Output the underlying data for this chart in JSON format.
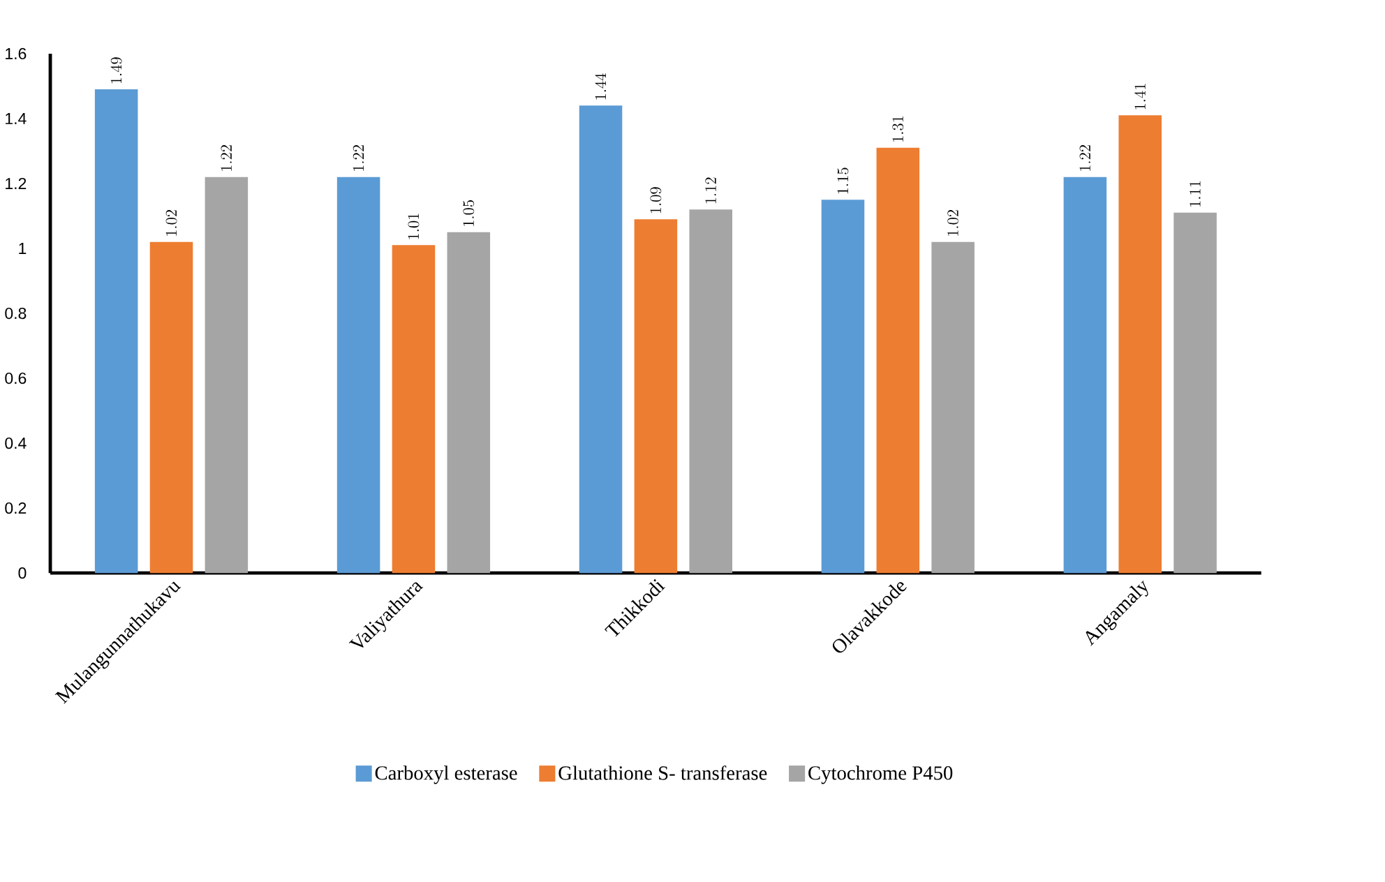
{
  "chart_data": {
    "type": "bar",
    "categories": [
      "Mulangunnathukavu",
      "Valiyathura",
      "Thikkodi",
      "Olavakkode",
      "Angamaly"
    ],
    "series": [
      {
        "name": "Carboxyl esterase",
        "color": "#5b9bd5",
        "values": [
          1.49,
          1.22,
          1.44,
          1.15,
          1.22
        ]
      },
      {
        "name": "Glutathione S- transferase",
        "color": "#ed7d31",
        "values": [
          1.02,
          1.01,
          1.09,
          1.31,
          1.41
        ]
      },
      {
        "name": "Cytochrome P450",
        "color": "#a5a5a5",
        "values": [
          1.22,
          1.05,
          1.12,
          1.02,
          1.11
        ]
      }
    ],
    "ylim": [
      0,
      1.6
    ],
    "yticks": [
      0,
      0.2,
      0.4,
      0.6,
      0.8,
      1,
      1.2,
      1.4,
      1.6
    ],
    "data_labels": true,
    "legend": "bottom",
    "grid": false
  }
}
